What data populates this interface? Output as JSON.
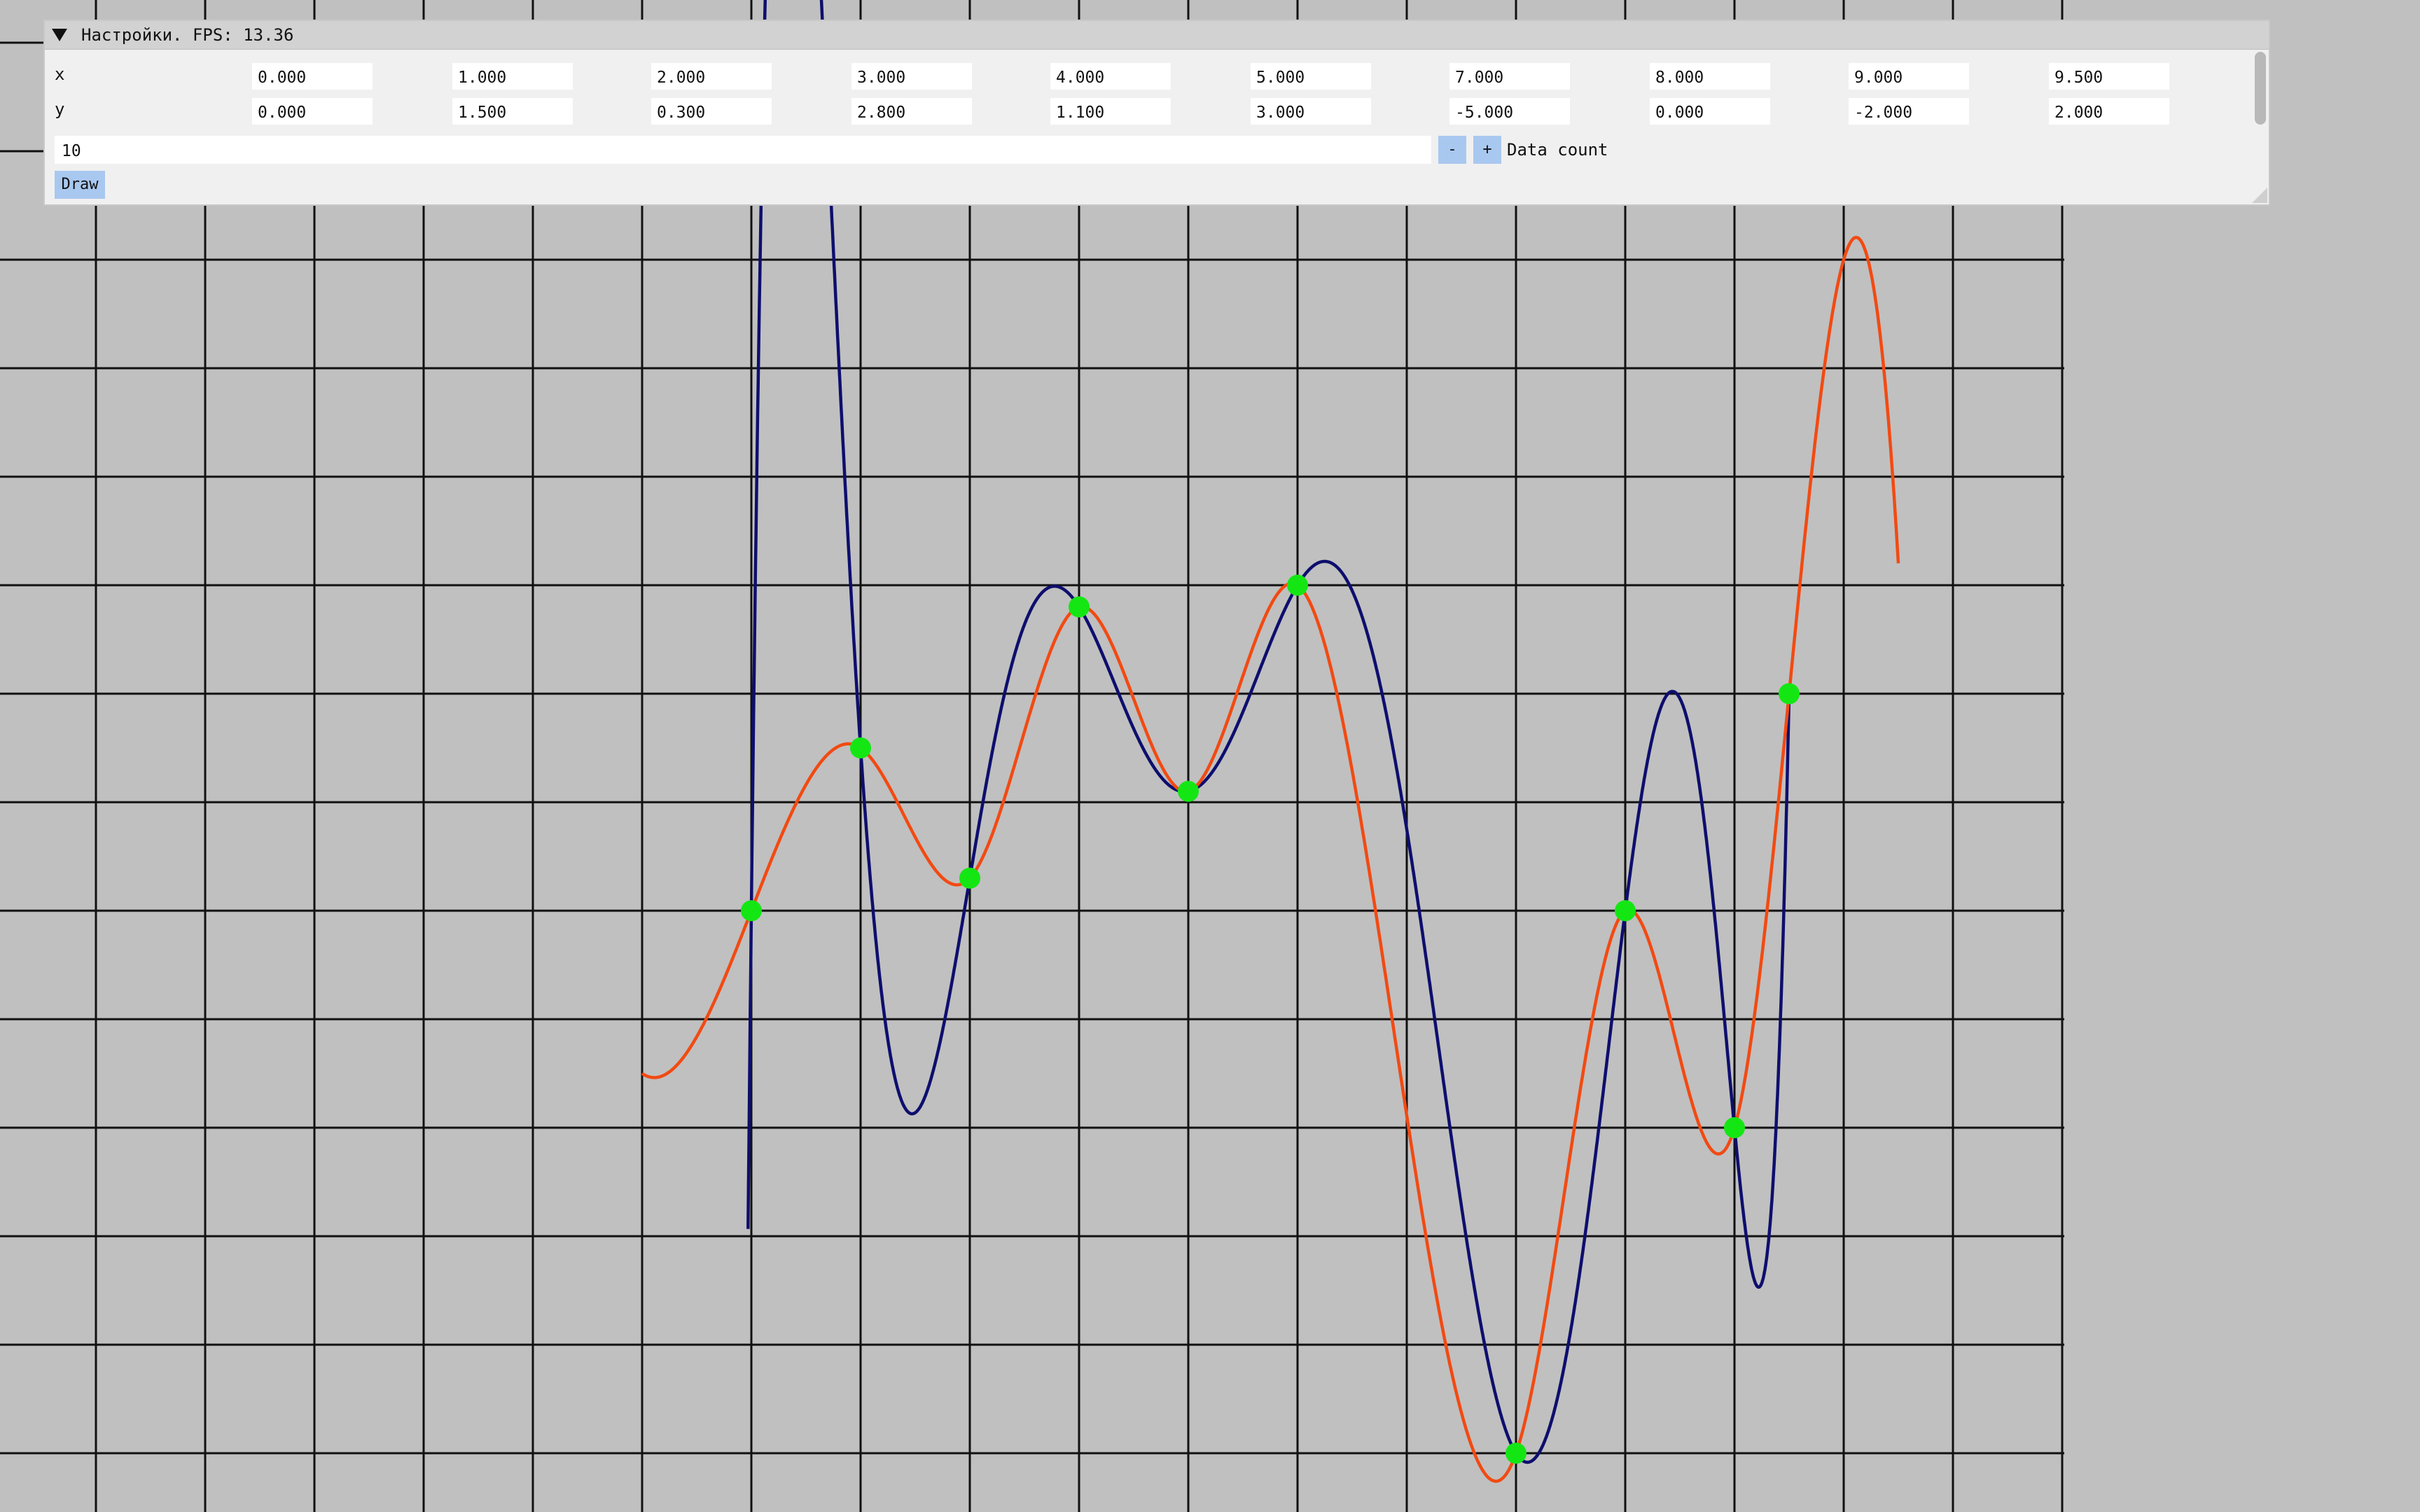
{
  "window": {
    "title": "Настройки. FPS: 13.36",
    "collapse_icon": "triangle-down-icon"
  },
  "table": {
    "x_label": "x",
    "y_label": "y",
    "x_values": [
      "0.000",
      "1.000",
      "2.000",
      "3.000",
      "4.000",
      "5.000",
      "7.000",
      "8.000",
      "9.000",
      "9.500"
    ],
    "y_values": [
      "0.000",
      "1.500",
      "0.300",
      "2.800",
      "1.100",
      "3.000",
      "-5.000",
      "0.000",
      "-2.000",
      "2.000"
    ]
  },
  "data_count": {
    "value": "10",
    "minus_label": "-",
    "plus_label": "+",
    "label": "Data count"
  },
  "draw_button": {
    "label": "Draw"
  },
  "colors": {
    "background": "#c0c0c0",
    "grid": "#111111",
    "polynomial_curve": "#0e0e6e",
    "spline_curve": "#f24a12",
    "data_points": "#14e614",
    "button": "#a9c8f0"
  },
  "chart_data": {
    "type": "line",
    "x": [
      0.0,
      1.0,
      2.0,
      3.0,
      4.0,
      5.0,
      7.0,
      8.0,
      9.0,
      9.5
    ],
    "y": [
      0.0,
      1.5,
      0.3,
      2.8,
      1.1,
      3.0,
      -5.0,
      0.0,
      -2.0,
      2.0
    ],
    "xlim": [
      -6.9,
      15.8
    ],
    "ylim": [
      -5.6,
      8.4
    ],
    "series": [
      {
        "kind": "interpolating-polynomial",
        "color": "#0e0e6e"
      },
      {
        "kind": "interpolating-spline",
        "color": "#f24a12"
      }
    ],
    "grid": true
  }
}
